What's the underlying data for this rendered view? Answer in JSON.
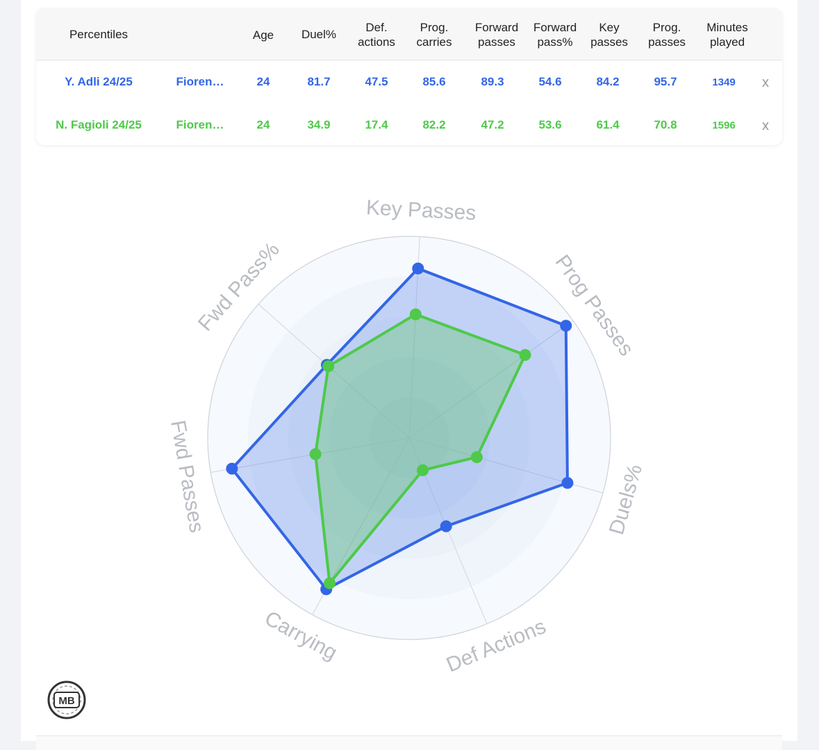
{
  "table": {
    "header": {
      "percentiles": "Percentiles",
      "age": "Age",
      "duel": "Duel%",
      "def_actions": [
        "Def.",
        "actions"
      ],
      "prog_carries": [
        "Prog.",
        "carries"
      ],
      "forward_passes": [
        "Forward",
        "passes"
      ],
      "forward_pass_pct": [
        "Forward",
        "pass%"
      ],
      "key_passes": [
        "Key",
        "passes"
      ],
      "prog_passes": [
        "Prog.",
        "passes"
      ],
      "minutes_played": [
        "Minutes",
        "played"
      ]
    },
    "rows": [
      {
        "player": "Y. Adli 24/25",
        "team": "Fioren…",
        "age": "24",
        "duel": "81.7",
        "def_actions": "47.5",
        "prog_carries": "85.6",
        "forward_passes": "89.3",
        "forward_pass_pct": "54.6",
        "key_passes": "84.2",
        "prog_passes": "95.7",
        "minutes": "1349",
        "remove": "x",
        "color": "#3366e6"
      },
      {
        "player": "N. Fagioli 24/25",
        "team": "Fioren…",
        "age": "24",
        "duel": "34.9",
        "def_actions": "17.4",
        "prog_carries": "82.2",
        "forward_passes": "47.2",
        "forward_pass_pct": "53.6",
        "key_passes": "61.4",
        "prog_passes": "70.8",
        "minutes": "1596",
        "remove": "x",
        "color": "#4ec94a"
      }
    ]
  },
  "radar": {
    "axes": [
      "Key Passes",
      "Prog Passes",
      "Duels%",
      "Def Actions",
      "Carrying",
      "Fwd Passes",
      "Fwd Pass%"
    ],
    "series": [
      {
        "color": "#3366e6",
        "values": [
          84.2,
          95.7,
          81.7,
          47.5,
          85.6,
          89.3,
          54.6
        ]
      },
      {
        "color": "#4ec94a",
        "values": [
          61.4,
          70.8,
          34.9,
          17.4,
          82.2,
          47.2,
          53.6
        ]
      }
    ],
    "max": 100
  },
  "logo": {
    "text": "MB",
    "icon": "mb-logo-icon"
  }
}
